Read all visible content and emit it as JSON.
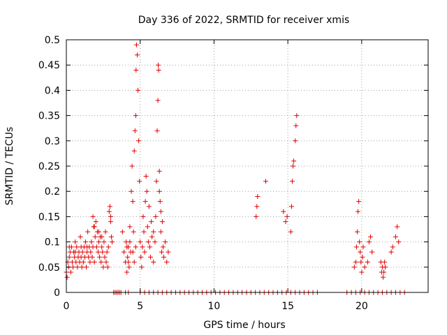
{
  "chart_data": {
    "type": "scatter",
    "title": "Day 336 of 2022, SRMTID for receiver xmis",
    "xlabel": "GPS time / hours",
    "ylabel": "SRMTID / TECUs",
    "xlim": [
      0,
      24.5
    ],
    "ylim": [
      0,
      0.5
    ],
    "x_ticks": [
      0,
      5,
      10,
      15,
      20
    ],
    "x_tick_labels": [
      "0",
      "5",
      "10",
      "15",
      "20"
    ],
    "y_ticks": [
      0,
      0.05,
      0.1,
      0.15,
      0.2,
      0.25,
      0.3,
      0.35,
      0.4,
      0.45,
      0.5
    ],
    "y_tick_labels": [
      "0",
      "0.05",
      "0.1",
      "0.15",
      "0.2",
      "0.25",
      "0.3",
      "0.35",
      "0.4",
      "0.45",
      "0.5"
    ],
    "grid": true,
    "marker": "+",
    "color": "#e00000",
    "series": [
      {
        "name": "SRMTID",
        "points": [
          [
            0.0,
            0.04
          ],
          [
            0.05,
            0.03
          ],
          [
            0.1,
            0.06
          ],
          [
            0.15,
            0.05
          ],
          [
            0.2,
            0.07
          ],
          [
            0.25,
            0.08
          ],
          [
            0.3,
            0.04
          ],
          [
            0.35,
            0.09
          ],
          [
            0.4,
            0.06
          ],
          [
            0.45,
            0.05
          ],
          [
            0.5,
            0.08
          ],
          [
            0.55,
            0.07
          ],
          [
            0.6,
            0.1
          ],
          [
            0.65,
            0.06
          ],
          [
            0.7,
            0.09
          ],
          [
            0.75,
            0.05
          ],
          [
            0.8,
            0.07
          ],
          [
            0.85,
            0.08
          ],
          [
            0.9,
            0.06
          ],
          [
            0.95,
            0.11
          ],
          [
            1.0,
            0.07
          ],
          [
            1.05,
            0.05
          ],
          [
            1.1,
            0.08
          ],
          [
            1.15,
            0.06
          ],
          [
            1.2,
            0.09
          ],
          [
            1.25,
            0.07
          ],
          [
            1.3,
            0.1
          ],
          [
            1.35,
            0.05
          ],
          [
            1.4,
            0.08
          ],
          [
            1.45,
            0.12
          ],
          [
            1.5,
            0.07
          ],
          [
            1.55,
            0.09
          ],
          [
            1.6,
            0.06
          ],
          [
            1.65,
            0.08
          ],
          [
            1.7,
            0.1
          ],
          [
            1.75,
            0.07
          ],
          [
            1.8,
            0.09
          ],
          [
            1.85,
            0.13
          ],
          [
            1.9,
            0.06
          ],
          [
            1.95,
            0.11
          ],
          [
            2.0,
            0.14
          ],
          [
            2.05,
            0.09
          ],
          [
            2.1,
            0.12
          ],
          [
            2.15,
            0.08
          ],
          [
            2.2,
            0.1
          ],
          [
            2.25,
            0.07
          ],
          [
            2.3,
            0.11
          ],
          [
            2.35,
            0.06
          ],
          [
            2.4,
            0.09
          ],
          [
            2.45,
            0.08
          ],
          [
            2.5,
            0.05
          ],
          [
            2.55,
            0.1
          ],
          [
            2.6,
            0.07
          ],
          [
            2.65,
            0.12
          ],
          [
            2.7,
            0.06
          ],
          [
            2.75,
            0.08
          ],
          [
            2.8,
            0.05
          ],
          [
            2.85,
            0.09
          ],
          [
            2.9,
            0.16
          ],
          [
            2.95,
            0.17
          ],
          [
            3.0,
            0.14
          ],
          [
            3.05,
            0.11
          ],
          [
            3.1,
            0.1
          ],
          [
            1.8,
            0.15
          ],
          [
            1.9,
            0.13
          ],
          [
            2.2,
            0.12
          ],
          [
            2.4,
            0.11
          ],
          [
            3.0,
            0.15
          ],
          [
            0.2,
            0.09
          ],
          [
            0.6,
            0.08
          ],
          [
            1.0,
            0.09
          ],
          [
            1.4,
            0.09
          ],
          [
            3.8,
            0.12
          ],
          [
            3.9,
            0.08
          ],
          [
            4.0,
            0.06
          ],
          [
            4.05,
            0.1
          ],
          [
            4.1,
            0.04
          ],
          [
            4.15,
            0.07
          ],
          [
            4.2,
            0.09
          ],
          [
            4.25,
            0.05
          ],
          [
            4.3,
            0.13
          ],
          [
            4.35,
            0.08
          ],
          [
            4.4,
            0.2
          ],
          [
            4.45,
            0.25
          ],
          [
            4.5,
            0.18
          ],
          [
            4.55,
            0.12
          ],
          [
            4.6,
            0.28
          ],
          [
            4.65,
            0.32
          ],
          [
            4.7,
            0.35
          ],
          [
            4.72,
            0.44
          ],
          [
            4.75,
            0.49
          ],
          [
            4.8,
            0.47
          ],
          [
            4.85,
            0.4
          ],
          [
            4.9,
            0.3
          ],
          [
            4.95,
            0.22
          ],
          [
            5.0,
            0.1
          ],
          [
            5.05,
            0.07
          ],
          [
            5.1,
            0.05
          ],
          [
            5.15,
            0.09
          ],
          [
            5.2,
            0.15
          ],
          [
            5.25,
            0.12
          ],
          [
            5.3,
            0.08
          ],
          [
            5.35,
            0.18
          ],
          [
            5.4,
            0.23
          ],
          [
            5.45,
            0.2
          ],
          [
            5.5,
            0.13
          ],
          [
            5.55,
            0.1
          ],
          [
            5.6,
            0.17
          ],
          [
            5.65,
            0.09
          ],
          [
            5.7,
            0.07
          ],
          [
            5.75,
            0.14
          ],
          [
            5.8,
            0.11
          ],
          [
            5.9,
            0.06
          ],
          [
            6.0,
            0.1
          ],
          [
            6.05,
            0.15
          ],
          [
            6.1,
            0.22
          ],
          [
            6.15,
            0.32
          ],
          [
            6.2,
            0.38
          ],
          [
            6.22,
            0.45
          ],
          [
            6.25,
            0.44
          ],
          [
            6.3,
            0.24
          ],
          [
            6.35,
            0.18
          ],
          [
            6.4,
            0.12
          ],
          [
            6.45,
            0.08
          ],
          [
            6.5,
            0.14
          ],
          [
            6.55,
            0.09
          ],
          [
            6.6,
            0.07
          ],
          [
            6.7,
            0.1
          ],
          [
            6.8,
            0.06
          ],
          [
            6.9,
            0.08
          ],
          [
            4.1,
            0.09
          ],
          [
            4.2,
            0.06
          ],
          [
            4.3,
            0.1
          ],
          [
            4.5,
            0.08
          ],
          [
            4.6,
            0.06
          ],
          [
            4.7,
            0.09
          ],
          [
            5.9,
            0.12
          ],
          [
            6.3,
            0.2
          ],
          [
            6.4,
            0.16
          ],
          [
            12.85,
            0.15
          ],
          [
            12.9,
            0.17
          ],
          [
            12.95,
            0.19
          ],
          [
            13.5,
            0.22
          ],
          [
            14.7,
            0.16
          ],
          [
            14.85,
            0.14
          ],
          [
            14.95,
            0.15
          ],
          [
            15.2,
            0.12
          ],
          [
            15.25,
            0.17
          ],
          [
            15.3,
            0.22
          ],
          [
            15.35,
            0.25
          ],
          [
            15.4,
            0.26
          ],
          [
            15.5,
            0.3
          ],
          [
            15.55,
            0.33
          ],
          [
            15.6,
            0.35
          ],
          [
            19.5,
            0.05
          ],
          [
            19.6,
            0.06
          ],
          [
            19.65,
            0.09
          ],
          [
            19.7,
            0.12
          ],
          [
            19.75,
            0.16
          ],
          [
            19.8,
            0.18
          ],
          [
            19.85,
            0.1
          ],
          [
            19.9,
            0.08
          ],
          [
            19.95,
            0.06
          ],
          [
            20.0,
            0.04
          ],
          [
            20.05,
            0.07
          ],
          [
            20.1,
            0.09
          ],
          [
            20.2,
            0.05
          ],
          [
            20.4,
            0.06
          ],
          [
            20.5,
            0.1
          ],
          [
            20.6,
            0.11
          ],
          [
            20.7,
            0.08
          ],
          [
            21.3,
            0.06
          ],
          [
            21.35,
            0.04
          ],
          [
            21.4,
            0.05
          ],
          [
            21.45,
            0.03
          ],
          [
            21.5,
            0.04
          ],
          [
            21.55,
            0.06
          ],
          [
            21.6,
            0.05
          ],
          [
            22.0,
            0.08
          ],
          [
            22.1,
            0.09
          ],
          [
            22.3,
            0.11
          ],
          [
            22.4,
            0.13
          ],
          [
            22.5,
            0.1
          ],
          [
            3.2,
            0.0
          ],
          [
            3.3,
            0.0
          ],
          [
            3.4,
            0.0
          ],
          [
            3.5,
            0.0
          ],
          [
            3.6,
            0.0
          ],
          [
            3.7,
            0.0
          ],
          [
            4.0,
            0.0
          ],
          [
            4.2,
            0.0
          ],
          [
            5.0,
            0.0
          ],
          [
            5.3,
            0.0
          ],
          [
            5.6,
            0.0
          ],
          [
            5.9,
            0.0
          ],
          [
            6.2,
            0.0
          ],
          [
            6.5,
            0.0
          ],
          [
            6.8,
            0.0
          ],
          [
            7.1,
            0.0
          ],
          [
            7.4,
            0.0
          ],
          [
            7.7,
            0.0
          ],
          [
            8.0,
            0.0
          ],
          [
            8.3,
            0.0
          ],
          [
            8.6,
            0.0
          ],
          [
            8.9,
            0.0
          ],
          [
            9.2,
            0.0
          ],
          [
            9.5,
            0.0
          ],
          [
            9.8,
            0.0
          ],
          [
            10.1,
            0.0
          ],
          [
            10.4,
            0.0
          ],
          [
            10.7,
            0.0
          ],
          [
            11.0,
            0.0
          ],
          [
            11.3,
            0.0
          ],
          [
            11.6,
            0.0
          ],
          [
            11.9,
            0.0
          ],
          [
            12.2,
            0.0
          ],
          [
            12.5,
            0.0
          ],
          [
            12.8,
            0.0
          ],
          [
            13.1,
            0.0
          ],
          [
            13.4,
            0.0
          ],
          [
            13.7,
            0.0
          ],
          [
            14.0,
            0.0
          ],
          [
            14.3,
            0.0
          ],
          [
            14.6,
            0.0
          ],
          [
            14.9,
            0.0
          ],
          [
            15.2,
            0.0
          ],
          [
            15.5,
            0.0
          ],
          [
            15.8,
            0.0
          ],
          [
            16.1,
            0.0
          ],
          [
            16.4,
            0.0
          ],
          [
            16.7,
            0.0
          ],
          [
            17.0,
            0.0
          ],
          [
            19.0,
            0.0
          ],
          [
            19.3,
            0.0
          ],
          [
            19.6,
            0.0
          ],
          [
            19.9,
            0.0
          ],
          [
            20.2,
            0.0
          ],
          [
            20.5,
            0.0
          ],
          [
            20.8,
            0.0
          ],
          [
            21.1,
            0.0
          ],
          [
            21.4,
            0.0
          ],
          [
            21.7,
            0.0
          ],
          [
            22.0,
            0.0
          ],
          [
            22.3,
            0.0
          ],
          [
            22.6,
            0.0
          ],
          [
            22.9,
            0.0
          ]
        ]
      }
    ]
  }
}
